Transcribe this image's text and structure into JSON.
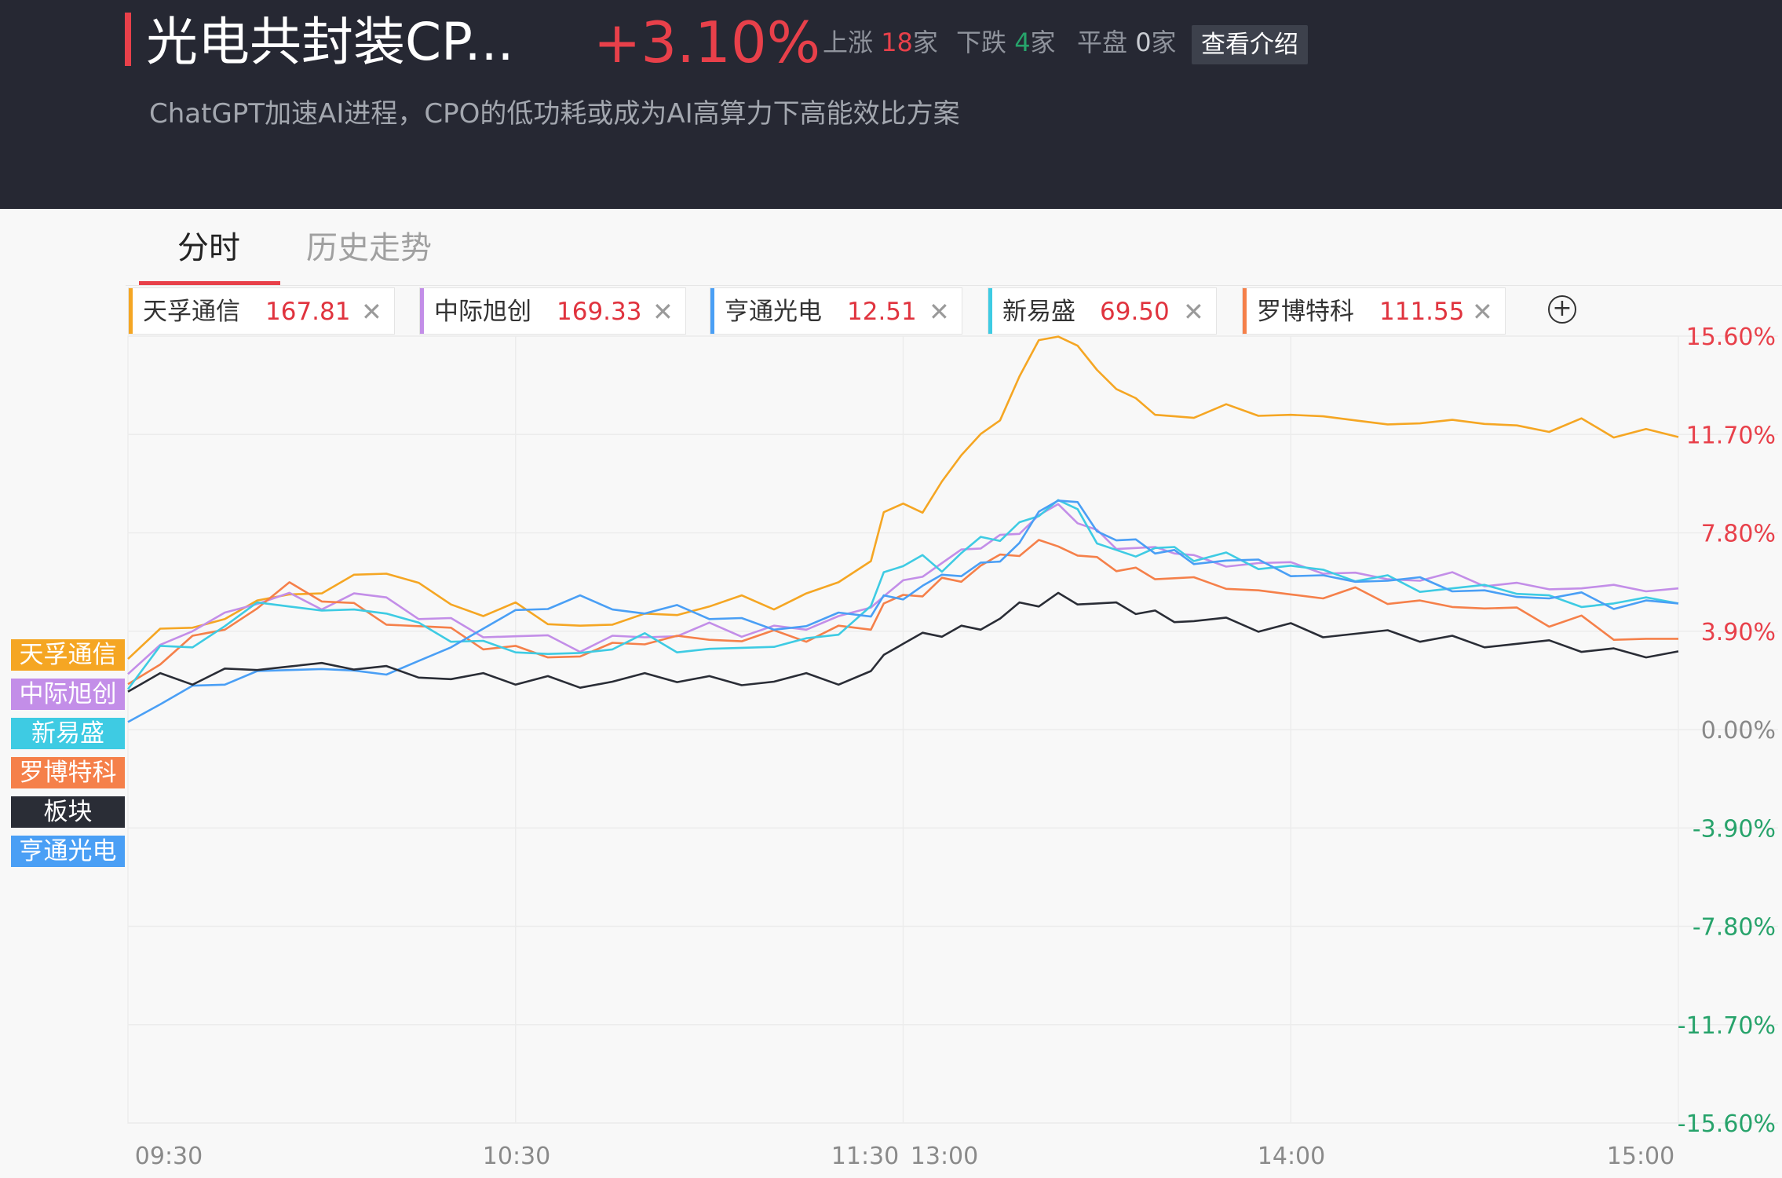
{
  "header": {
    "title": "光电共封装CP...",
    "change": "+3.10%",
    "up_label": "上涨",
    "up_count": "18",
    "up_unit": "家",
    "down_label": "下跌",
    "down_count": "4",
    "down_unit": "家",
    "flat_label": "平盘",
    "flat_count": "0",
    "flat_unit": "家",
    "intro_button": "查看介绍",
    "subtitle": "ChatGPT加速AI进程，CPO的低功耗或成为AI高算力下高能效比方案"
  },
  "tabs": [
    {
      "label": "分时",
      "active": true
    },
    {
      "label": "历史走势",
      "active": false
    }
  ],
  "stocks": [
    {
      "name": "天孚通信",
      "price": "167.81",
      "color": "#f5a623"
    },
    {
      "name": "中际旭创",
      "price": "169.33",
      "color": "#c38ee8"
    },
    {
      "name": "亨通光电",
      "price": "12.51",
      "color": "#4a9ff5"
    },
    {
      "name": "新易盛",
      "price": "69.50",
      "color": "#3ecbe3"
    },
    {
      "name": "罗博特科",
      "price": "111.55",
      "color": "#f5804a"
    }
  ],
  "legend": [
    {
      "label": "天孚通信",
      "color": "#f5a623"
    },
    {
      "label": "中际旭创",
      "color": "#c38ee8"
    },
    {
      "label": "新易盛",
      "color": "#3ecbe3"
    },
    {
      "label": "罗博特科",
      "color": "#f5804a"
    },
    {
      "label": "板块",
      "color": "#2a2d36"
    },
    {
      "label": "亨通光电",
      "color": "#4a9ff5"
    }
  ],
  "colors": {
    "up": "#e8404a",
    "down": "#27a36b",
    "zero": "#888888"
  },
  "chart_data": {
    "type": "line",
    "x_ticks": [
      "09:30",
      "10:30",
      "11:30",
      "13:00",
      "14:00",
      "15:00"
    ],
    "y_ticks": [
      "15.60%",
      "11.70%",
      "7.80%",
      "3.90%",
      "0.00%",
      "-3.90%",
      "-7.80%",
      "-11.70%",
      "-15.60%"
    ],
    "ylim": [
      -15.6,
      15.6
    ],
    "x_unit": "minutes from 09:30 (trading time)",
    "series": [
      {
        "name": "天孚通信",
        "color": "#f5a623",
        "x": [
          0,
          5,
          10,
          15,
          20,
          25,
          30,
          35,
          40,
          45,
          50,
          55,
          60,
          65,
          70,
          75,
          80,
          85,
          90,
          95,
          100,
          105,
          110,
          115,
          117,
          120,
          123,
          126,
          129,
          132,
          135,
          138,
          141,
          144,
          147,
          150,
          153,
          156,
          159,
          162,
          165,
          170,
          175,
          180,
          185,
          190,
          195,
          200,
          205,
          210,
          215,
          220,
          225,
          230,
          235,
          240
        ],
        "y": [
          2.8,
          4.0,
          3.8,
          4.5,
          5.0,
          5.6,
          5.4,
          5.9,
          6.3,
          5.7,
          5.2,
          4.5,
          4.8,
          4.3,
          4.0,
          4.4,
          4.6,
          4.3,
          5.0,
          5.2,
          5.0,
          5.4,
          5.6,
          6.8,
          8.5,
          9.2,
          8.6,
          9.6,
          11.0,
          11.6,
          12.5,
          14.0,
          15.2,
          15.7,
          15.1,
          14.5,
          13.5,
          12.9,
          12.6,
          12.3,
          12.6,
          12.9,
          12.2,
          12.6,
          12.3,
          12.5,
          12.1,
          11.9,
          12.4,
          12.0,
          12.3,
          11.8,
          12.1,
          11.7,
          11.8,
          11.6
        ]
      },
      {
        "name": "中际旭创",
        "color": "#c38ee8",
        "x": [
          0,
          5,
          10,
          15,
          20,
          25,
          30,
          35,
          40,
          45,
          50,
          55,
          60,
          65,
          70,
          75,
          80,
          85,
          90,
          95,
          100,
          105,
          110,
          115,
          117,
          120,
          123,
          126,
          129,
          132,
          135,
          138,
          141,
          144,
          147,
          150,
          153,
          156,
          159,
          162,
          165,
          170,
          175,
          180,
          185,
          190,
          195,
          200,
          205,
          210,
          215,
          220,
          225,
          230,
          235,
          240
        ],
        "y": [
          2.2,
          3.6,
          3.9,
          4.4,
          5.1,
          5.3,
          5.0,
          5.4,
          5.0,
          4.5,
          4.3,
          3.9,
          3.7,
          3.5,
          3.2,
          3.6,
          3.9,
          3.7,
          4.0,
          3.8,
          4.0,
          4.2,
          4.5,
          4.6,
          5.4,
          5.8,
          6.3,
          6.6,
          6.9,
          7.3,
          7.6,
          8.0,
          8.5,
          8.7,
          8.3,
          7.8,
          7.4,
          7.2,
          7.0,
          7.1,
          6.8,
          6.7,
          6.6,
          6.4,
          6.3,
          6.1,
          6.2,
          5.9,
          6.0,
          5.8,
          5.7,
          5.8,
          5.6,
          5.5,
          5.6,
          5.6
        ]
      },
      {
        "name": "新易盛",
        "color": "#3ecbe3",
        "x": [
          0,
          5,
          10,
          15,
          20,
          25,
          30,
          35,
          40,
          45,
          50,
          55,
          60,
          65,
          70,
          75,
          80,
          85,
          90,
          95,
          100,
          105,
          110,
          115,
          117,
          120,
          123,
          126,
          129,
          132,
          135,
          138,
          141,
          144,
          147,
          150,
          153,
          156,
          159,
          162,
          165,
          170,
          175,
          180,
          185,
          190,
          195,
          200,
          205,
          210,
          215,
          220,
          225,
          230,
          235,
          240
        ],
        "y": [
          1.6,
          3.2,
          3.5,
          4.1,
          4.8,
          5.0,
          4.6,
          5.0,
          4.6,
          4.0,
          3.6,
          3.4,
          3.3,
          3.0,
          2.8,
          3.3,
          3.7,
          3.3,
          3.2,
          3.0,
          3.4,
          3.5,
          4.0,
          4.9,
          6.0,
          6.6,
          6.8,
          6.5,
          7.0,
          7.4,
          7.6,
          8.1,
          8.7,
          9.1,
          8.5,
          7.5,
          7.0,
          7.1,
          7.2,
          7.0,
          6.8,
          6.9,
          6.6,
          6.5,
          6.1,
          6.0,
          6.0,
          5.7,
          5.6,
          5.5,
          5.5,
          5.2,
          5.1,
          5.0,
          5.0,
          5.0
        ]
      },
      {
        "name": "罗博特科",
        "color": "#f5804a",
        "x": [
          0,
          5,
          10,
          15,
          20,
          25,
          30,
          35,
          40,
          45,
          50,
          55,
          60,
          65,
          70,
          75,
          80,
          85,
          90,
          95,
          100,
          105,
          110,
          115,
          117,
          120,
          123,
          126,
          129,
          132,
          135,
          138,
          141,
          144,
          147,
          150,
          153,
          156,
          159,
          162,
          165,
          170,
          175,
          180,
          185,
          190,
          195,
          200,
          205,
          210,
          215,
          220,
          225,
          230,
          235,
          240
        ],
        "y": [
          1.8,
          2.7,
          3.6,
          4.2,
          4.8,
          5.6,
          5.2,
          4.9,
          4.4,
          4.1,
          3.8,
          3.3,
          3.2,
          3.1,
          2.9,
          3.2,
          3.5,
          3.6,
          3.8,
          3.5,
          3.7,
          3.6,
          4.0,
          4.2,
          5.0,
          5.1,
          5.4,
          5.9,
          6.1,
          6.5,
          6.7,
          7.0,
          7.4,
          7.5,
          6.9,
          6.6,
          6.4,
          6.3,
          6.2,
          6.0,
          5.8,
          5.7,
          5.4,
          5.6,
          5.2,
          5.4,
          5.1,
          5.0,
          5.1,
          4.8,
          4.6,
          4.2,
          4.4,
          3.8,
          3.6,
          3.6
        ]
      },
      {
        "name": "板块",
        "color": "#2a2d36",
        "x": [
          0,
          5,
          10,
          15,
          20,
          25,
          30,
          35,
          40,
          45,
          50,
          55,
          60,
          65,
          70,
          75,
          80,
          85,
          90,
          95,
          100,
          105,
          110,
          115,
          117,
          120,
          123,
          126,
          129,
          132,
          135,
          138,
          141,
          144,
          147,
          150,
          153,
          156,
          159,
          162,
          165,
          170,
          175,
          180,
          185,
          190,
          195,
          200,
          205,
          210,
          215,
          220,
          225,
          230,
          235,
          240
        ],
        "y": [
          1.5,
          2.0,
          1.9,
          2.3,
          2.6,
          2.5,
          2.4,
          2.5,
          2.4,
          2.3,
          2.0,
          2.0,
          1.9,
          2.0,
          1.9,
          1.9,
          2.0,
          2.0,
          2.0,
          2.0,
          1.9,
          2.0,
          1.9,
          2.2,
          3.2,
          3.4,
          3.6,
          3.8,
          4.0,
          4.2,
          4.4,
          4.8,
          5.0,
          5.3,
          5.2,
          5.0,
          4.8,
          4.7,
          4.6,
          4.5,
          4.3,
          4.2,
          4.0,
          4.1,
          3.9,
          3.8,
          3.7,
          3.6,
          3.6,
          3.5,
          3.4,
          3.3,
          3.2,
          3.1,
          3.1,
          3.1
        ]
      },
      {
        "name": "亨通光电",
        "color": "#4a9ff5",
        "x": [
          0,
          5,
          10,
          15,
          20,
          25,
          30,
          35,
          40,
          45,
          50,
          55,
          60,
          65,
          70,
          75,
          80,
          85,
          90,
          95,
          100,
          105,
          110,
          115,
          117,
          120,
          123,
          126,
          129,
          132,
          135,
          138,
          141,
          144,
          147,
          150,
          153,
          156,
          159,
          162,
          165,
          170,
          175,
          180,
          185,
          190,
          195,
          200,
          205,
          210,
          215,
          220,
          225,
          230,
          235,
          240
        ],
        "y": [
          0.3,
          1.0,
          1.5,
          1.9,
          2.2,
          2.6,
          2.4,
          2.1,
          2.3,
          2.6,
          3.5,
          4.0,
          4.5,
          4.9,
          5.2,
          5.0,
          4.6,
          4.7,
          4.5,
          4.3,
          4.2,
          4.1,
          4.4,
          4.6,
          5.2,
          5.4,
          5.7,
          5.9,
          6.2,
          6.5,
          6.9,
          7.4,
          8.4,
          9.2,
          8.9,
          8.1,
          7.5,
          7.3,
          7.1,
          7.0,
          6.8,
          6.7,
          6.5,
          6.2,
          6.0,
          6.1,
          5.9,
          5.8,
          5.6,
          5.4,
          5.5,
          5.2,
          5.2,
          4.9,
          5.0,
          5.0
        ]
      }
    ]
  }
}
